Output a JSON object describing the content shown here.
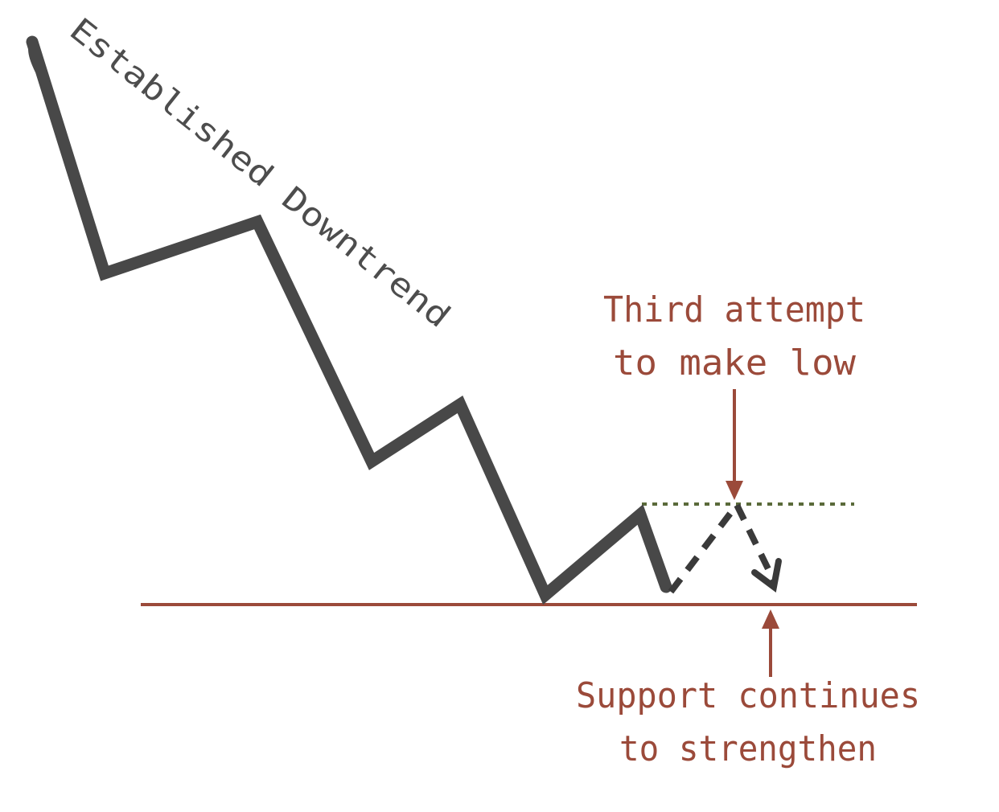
{
  "diagram": {
    "trend_label": "Established Downtrend",
    "top_annotation": [
      "Third attempt",
      "to make low"
    ],
    "bottom_annotation": [
      "Support continues",
      "to strengthen"
    ]
  },
  "colors": {
    "price_line": "#484848",
    "support_line": "#9b4a3a",
    "annotation_text": "#9b4a3a",
    "dotted_resistance": "#5a6a3a",
    "projection_dash": "#3a3a3a",
    "trend_label_text": "#4d4d4d"
  }
}
